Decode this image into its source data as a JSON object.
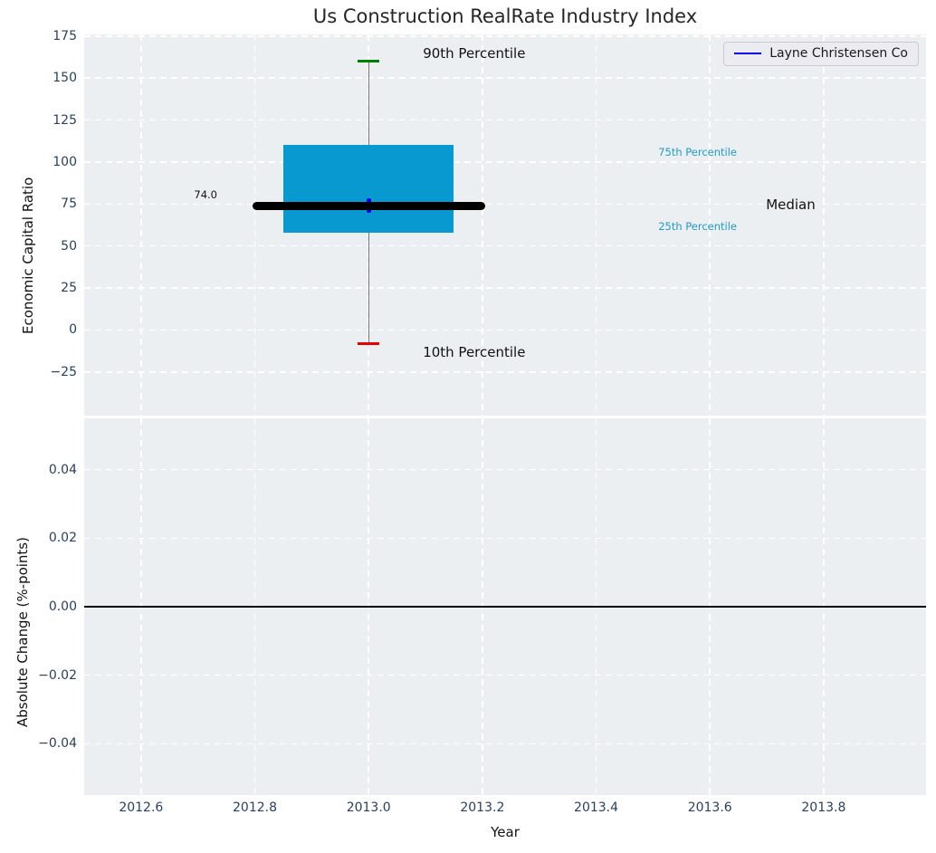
{
  "chart_data": {
    "type": "box",
    "title": "Us Construction RealRate Industry Index",
    "legend": {
      "position": "upper right",
      "entries": [
        {
          "label": "Layne Christensen Co",
          "color": "#0000ee"
        }
      ]
    },
    "x_axis": {
      "label": "Year",
      "xlim": [
        2012.5,
        2013.98
      ],
      "tick_values": [
        2012.6,
        2012.8,
        2013.0,
        2013.2,
        2013.4,
        2013.6,
        2013.8
      ],
      "tick_labels": [
        "2012.6",
        "2012.8",
        "2013.0",
        "2013.2",
        "2013.4",
        "2013.6",
        "2013.8"
      ]
    },
    "top_panel": {
      "ylabel": "Economic Capital Ratio",
      "ylim": [
        -51,
        176
      ],
      "tick_values": [
        175,
        150,
        125,
        100,
        75,
        50,
        25,
        0,
        -25
      ],
      "tick_labels": [
        "175",
        "150",
        "125",
        "100",
        "75",
        "50",
        "25",
        "0",
        "−25"
      ],
      "grid": true,
      "box_data": {
        "x": 2013.0,
        "p90": 160,
        "p75": 110,
        "median": 74.0,
        "p25": 58,
        "p10": -8,
        "company_value": 74.0,
        "box_span_years": [
          2012.85,
          2013.15
        ],
        "median_span_years": [
          2012.8,
          2013.2
        ]
      },
      "annotations": {
        "p90_label": "90th Percentile",
        "p10_label": "10th Percentile",
        "p75_label": "75th Percentile",
        "p25_label": "25th Percentile",
        "median_label": "Median",
        "median_value_label": "74.0"
      }
    },
    "bottom_panel": {
      "ylabel": "Absolute Change (%-points)",
      "ylim": [
        -0.055,
        0.055
      ],
      "tick_values": [
        0.04,
        0.02,
        0.0,
        -0.02,
        -0.04
      ],
      "tick_labels": [
        "0.04",
        "0.02",
        "0.00",
        "−0.02",
        "−0.04"
      ],
      "grid": true,
      "zero_line_y": 0.0
    },
    "colors": {
      "axes_background": "#eceff1",
      "grid": "#ffffff",
      "tick_label": "#2a3f5f",
      "title": "#262626",
      "iqr_box": "#0999d1",
      "percentile_text": "#1f9acb",
      "median_line": "#000000",
      "p90_cap": "#008000",
      "p10_cap": "#e60000",
      "whisker": "#777777",
      "company": "#0000ee",
      "zero_line": "#000000"
    }
  }
}
